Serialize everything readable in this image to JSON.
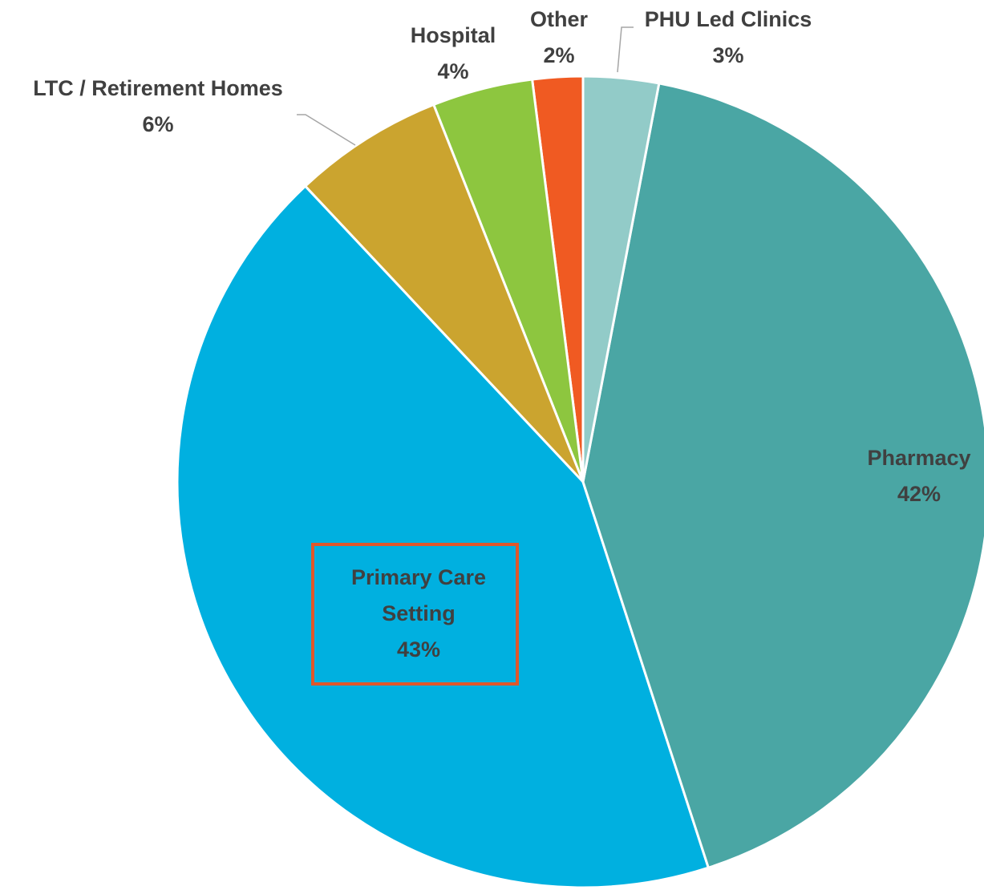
{
  "chart_data": {
    "type": "pie",
    "categories": [
      "PHU Led Clinics",
      "Pharmacy",
      "Primary Care Setting",
      "LTC / Retirement Homes",
      "Hospital",
      "Other"
    ],
    "values": [
      3,
      42,
      43,
      6,
      4,
      2
    ],
    "value_labels": [
      "3%",
      "42%",
      "43%",
      "6%",
      "4%",
      "2%"
    ],
    "colors": [
      "#92cbc8",
      "#4aa6a4",
      "#00b0e0",
      "#cba42f",
      "#8dc63f",
      "#f05a22"
    ]
  }
}
